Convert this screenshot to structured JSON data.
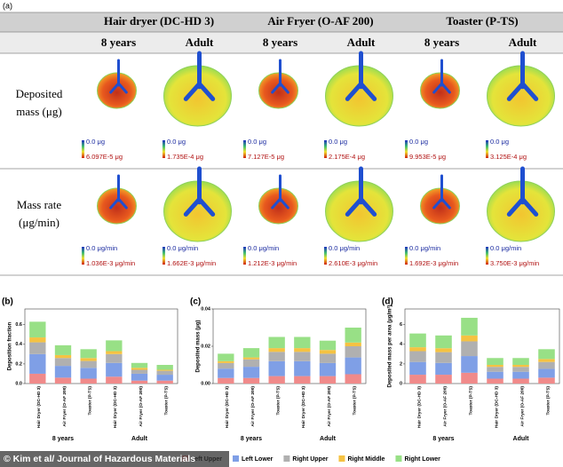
{
  "panel_a": {
    "label": "(a)",
    "devices": [
      "Hair dryer (DC-HD 3)",
      "Air Fryer (O-AF 200)",
      "Toaster (P-TS)"
    ],
    "ages": [
      "8 years",
      "Adult",
      "8 years",
      "Adult",
      "8 years",
      "Adult"
    ],
    "rows": [
      {
        "label": [
          "Deposited",
          "mass (μg)"
        ],
        "cells": [
          {
            "min": "0.0 μg",
            "max": "6.097E-5 μg"
          },
          {
            "min": "0.0 μg",
            "max": "1.735E-4 μg"
          },
          {
            "min": "0.0 μg",
            "max": "7.127E-5 μg"
          },
          {
            "min": "0.0 μg",
            "max": "2.175E-4 μg"
          },
          {
            "min": "0.0 μg",
            "max": "9.953E-5 μg"
          },
          {
            "min": "0.0 μg",
            "max": "3.125E-4 μg"
          }
        ]
      },
      {
        "label": [
          "Mass rate",
          "(μg/min)"
        ],
        "cells": [
          {
            "min": "0.0 μg/min",
            "max": "1.036E-3 μg/min"
          },
          {
            "min": "0.0 μg/min",
            "max": "1.662E-3 μg/min"
          },
          {
            "min": "0.0 μg/min",
            "max": "1.212E-3 μg/min"
          },
          {
            "min": "0.0 μg/min",
            "max": "2.610E-3 μg/min"
          },
          {
            "min": "0.0 μg/min",
            "max": "1.692E-3 μg/min"
          },
          {
            "min": "0.0 μg/min",
            "max": "3.750E-3 μg/min"
          }
        ]
      }
    ]
  },
  "chart_data": [
    {
      "type": "stacked-bar",
      "panel": "(b)",
      "y_label": "Deposition fraction",
      "categories": [
        "Hair Dryer (DC-HD 3)",
        "Air Fryer (O-AF 200)",
        "Toaster (P-TS)",
        "Hair Dryer (DC-HD 3)",
        "Air Fryer (O-AF 200)",
        "Toaster (P-TS)"
      ],
      "groups": [
        "8 years",
        "Adult"
      ],
      "ylim": [
        0,
        0.76
      ],
      "yticks": [
        {
          "value": 0,
          "label": "0.0"
        },
        0.2,
        0.4,
        0.6
      ],
      "series": [
        {
          "name": "Left Upper",
          "color": "#f08a8a",
          "values": [
            0.1,
            0.06,
            0.05,
            0.07,
            0.03,
            0.03
          ]
        },
        {
          "name": "Left Lower",
          "color": "#7f9fe6",
          "values": [
            0.2,
            0.12,
            0.11,
            0.14,
            0.07,
            0.06
          ]
        },
        {
          "name": "Right Upper",
          "color": "#b0b0b0",
          "values": [
            0.12,
            0.08,
            0.07,
            0.09,
            0.04,
            0.04
          ]
        },
        {
          "name": "Right Middle",
          "color": "#f5c242",
          "values": [
            0.05,
            0.03,
            0.03,
            0.03,
            0.02,
            0.01
          ]
        },
        {
          "name": "Right Lower",
          "color": "#98e086",
          "values": [
            0.16,
            0.1,
            0.09,
            0.11,
            0.05,
            0.05
          ]
        }
      ]
    },
    {
      "type": "stacked-bar",
      "panel": "(c)",
      "y_label": "Deposited mass (μg)",
      "categories": [
        "Hair Dryer (DC-HD 3)",
        "Air Fryer (O-AF 200)",
        "Toaster (P-TS)",
        "Hair Dryer (DC-HD 3)",
        "Air Fryer (O-AF 200)",
        "Toaster (P-TS)"
      ],
      "groups": [
        "8 years",
        "Adult"
      ],
      "ylim": [
        0,
        0.04
      ],
      "yticks": [
        {
          "value": 0,
          "label": "0.00"
        },
        {
          "value": 0.02,
          "label": "0.02"
        },
        {
          "value": 0.04,
          "label": "0.04"
        }
      ],
      "series": [
        {
          "name": "Left Upper",
          "color": "#f08a8a",
          "values": [
            0.003,
            0.003,
            0.004,
            0.004,
            0.004,
            0.005
          ]
        },
        {
          "name": "Left Lower",
          "color": "#7f9fe6",
          "values": [
            0.005,
            0.006,
            0.008,
            0.008,
            0.007,
            0.009
          ]
        },
        {
          "name": "Right Upper",
          "color": "#b0b0b0",
          "values": [
            0.003,
            0.004,
            0.005,
            0.005,
            0.005,
            0.006
          ]
        },
        {
          "name": "Right Middle",
          "color": "#f5c242",
          "values": [
            0.001,
            0.001,
            0.002,
            0.002,
            0.002,
            0.002
          ]
        },
        {
          "name": "Right Lower",
          "color": "#98e086",
          "values": [
            0.004,
            0.005,
            0.006,
            0.006,
            0.005,
            0.008
          ]
        }
      ]
    },
    {
      "type": "stacked-bar",
      "panel": "(d)",
      "y_label": "Deposited mass per area (μg/m²)",
      "categories": [
        "Hair Dryer (DC-HD 3)",
        "Air Fryer (O-AF 200)",
        "Toaster (P-TS)",
        "Hair Dryer (DC-HD 3)",
        "Air Fryer (O-AF 200)",
        "Toaster (P-TS)"
      ],
      "groups": [
        "8 years",
        "Adult"
      ],
      "ylim": [
        0,
        7.6
      ],
      "yticks": [
        0,
        2,
        4,
        6
      ],
      "series": [
        {
          "name": "Left Upper",
          "color": "#f08a8a",
          "values": [
            0.9,
            0.9,
            1.1,
            0.5,
            0.5,
            0.6
          ]
        },
        {
          "name": "Left Lower",
          "color": "#7f9fe6",
          "values": [
            1.3,
            1.2,
            1.7,
            0.7,
            0.7,
            0.9
          ]
        },
        {
          "name": "Right Upper",
          "color": "#b0b0b0",
          "values": [
            1.1,
            1.1,
            1.5,
            0.5,
            0.5,
            0.7
          ]
        },
        {
          "name": "Right Middle",
          "color": "#f5c242",
          "values": [
            0.4,
            0.4,
            0.6,
            0.2,
            0.2,
            0.3
          ]
        },
        {
          "name": "Right Lower",
          "color": "#98e086",
          "values": [
            1.4,
            1.3,
            1.8,
            0.7,
            0.7,
            1.0
          ]
        }
      ]
    }
  ],
  "watermark": "© Kim et al/ Journal of Hazardous Materials"
}
